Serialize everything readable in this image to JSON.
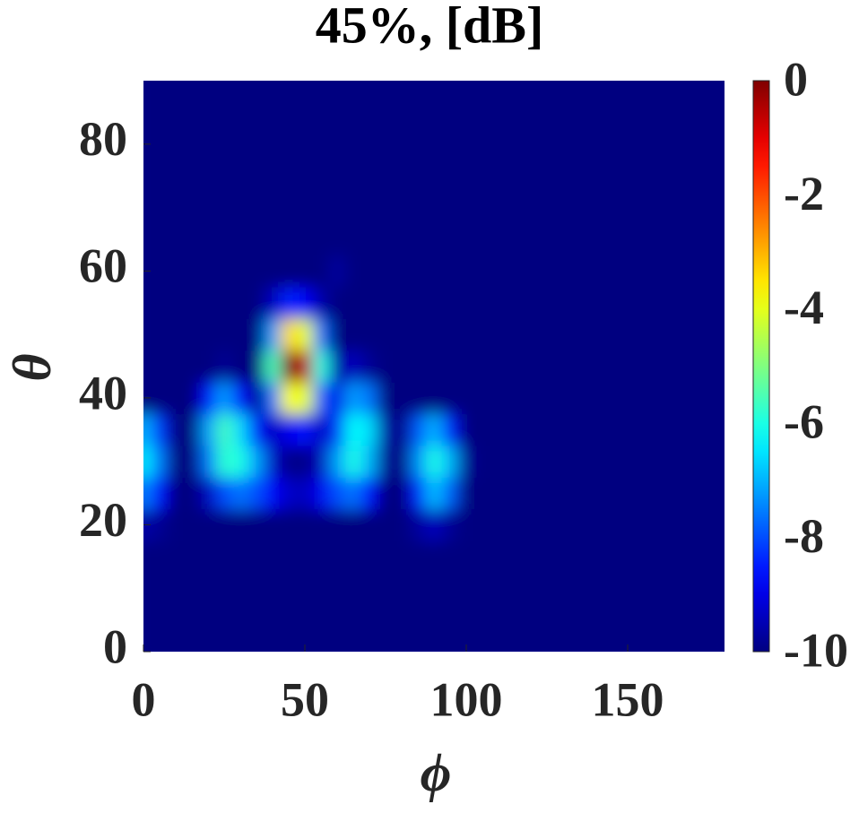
{
  "chart_data": {
    "type": "heatmap",
    "title": "45%, [dB]",
    "xlabel": "ϕ",
    "ylabel": "θ",
    "x": [
      0,
      5,
      10,
      15,
      20,
      25,
      30,
      35,
      40,
      45,
      50,
      55,
      60,
      65,
      70,
      75,
      80,
      85,
      90,
      95,
      100,
      105,
      110,
      115,
      120,
      125,
      130,
      135,
      140,
      145,
      150,
      155,
      160,
      165,
      170,
      175,
      180
    ],
    "y": [
      0,
      5,
      10,
      15,
      20,
      25,
      30,
      35,
      40,
      45,
      50,
      55,
      60,
      65,
      70,
      75,
      80,
      85,
      90
    ],
    "z": [
      [
        -10,
        -10,
        -10,
        -10,
        -10,
        -10,
        -10,
        -10,
        -10,
        -10,
        -10,
        -10,
        -10,
        -10,
        -10,
        -10,
        -10,
        -10,
        -10,
        -10,
        -10,
        -10,
        -10,
        -10,
        -10,
        -10,
        -10,
        -10,
        -10,
        -10,
        -10,
        -10,
        -10,
        -10,
        -10,
        -10,
        -10
      ],
      [
        -10,
        -10,
        -10,
        -10,
        -10,
        -10,
        -10,
        -10,
        -10,
        -10,
        -10,
        -10,
        -10,
        -10,
        -10,
        -10,
        -10,
        -10,
        -10,
        -10,
        -10,
        -10,
        -10,
        -10,
        -10,
        -10,
        -10,
        -10,
        -10,
        -10,
        -10,
        -10,
        -10,
        -10,
        -10,
        -10,
        -10
      ],
      [
        -10,
        -10,
        -10,
        -10,
        -10,
        -10,
        -10,
        -10,
        -10,
        -10,
        -10,
        -10,
        -10,
        -10,
        -10,
        -10,
        -10,
        -10,
        -10,
        -10,
        -10,
        -10,
        -10,
        -10,
        -10,
        -10,
        -10,
        -10,
        -10,
        -10,
        -10,
        -10,
        -10,
        -10,
        -10,
        -10,
        -10
      ],
      [
        -10,
        -10,
        -10,
        -10,
        -10,
        -10,
        -10,
        -10,
        -10,
        -10,
        -10,
        -10,
        -10,
        -10,
        -10,
        -10,
        -10,
        -10,
        -10,
        -10,
        -10,
        -10,
        -10,
        -10,
        -10,
        -10,
        -10,
        -10,
        -10,
        -10,
        -10,
        -10,
        -10,
        -10,
        -10,
        -10,
        -10
      ],
      [
        -9.6,
        -9.8,
        -10,
        -10,
        -10,
        -10,
        -10,
        -10,
        -10,
        -10,
        -10,
        -10,
        -10,
        -10,
        -10,
        -10,
        -10,
        -9.7,
        -9.4,
        -9.8,
        -10,
        -10,
        -10,
        -10,
        -10,
        -10,
        -10,
        -10,
        -10,
        -10,
        -10,
        -10,
        -10,
        -10,
        -10,
        -10,
        -10
      ],
      [
        -7.5,
        -8.6,
        -10,
        -10,
        -9.4,
        -8,
        -7.6,
        -8,
        -8.8,
        -9.3,
        -9.4,
        -8.9,
        -8,
        -7.6,
        -8.6,
        -10,
        -10,
        -8.4,
        -6.9,
        -7.8,
        -10,
        -10,
        -10,
        -10,
        -10,
        -10,
        -10,
        -10,
        -10,
        -10,
        -10,
        -10,
        -10,
        -10,
        -10,
        -10,
        -10
      ],
      [
        -6.4,
        -7.6,
        -10,
        -10,
        -7.6,
        -5.8,
        -6,
        -7.2,
        -9.3,
        -9.9,
        -9.9,
        -9.4,
        -7.2,
        -6,
        -7,
        -9.8,
        -10,
        -7.4,
        -6,
        -7,
        -9.8,
        -10,
        -10,
        -10,
        -10,
        -10,
        -10,
        -10,
        -10,
        -10,
        -10,
        -10,
        -10,
        -10,
        -10,
        -10,
        -10
      ],
      [
        -7,
        -8.2,
        -10,
        -10,
        -7.2,
        -5.6,
        -6.6,
        -8.6,
        -9.4,
        -8.9,
        -8.6,
        -9.4,
        -8.2,
        -6.2,
        -6.6,
        -9.6,
        -10,
        -7.9,
        -7,
        -8.4,
        -10,
        -10,
        -10,
        -10,
        -10,
        -10,
        -10,
        -10,
        -10,
        -10,
        -10,
        -10,
        -10,
        -10,
        -10,
        -10,
        -10
      ],
      [
        -10,
        -10,
        -10,
        -10,
        -8.6,
        -7.2,
        -8.6,
        -9.8,
        -7.6,
        -3.8,
        -4,
        -7.8,
        -9,
        -7.2,
        -7.6,
        -10,
        -10,
        -10,
        -10,
        -10,
        -10,
        -10,
        -10,
        -10,
        -10,
        -10,
        -10,
        -10,
        -10,
        -10,
        -10,
        -10,
        -10,
        -10,
        -10,
        -10,
        -10
      ],
      [
        -10,
        -10,
        -10,
        -10,
        -10,
        -9.8,
        -10,
        -10,
        -5.6,
        0,
        -0.6,
        -6,
        -9.6,
        -9.4,
        -9.8,
        -10,
        -10,
        -10,
        -10,
        -10,
        -10,
        -10,
        -10,
        -10,
        -10,
        -10,
        -10,
        -10,
        -10,
        -10,
        -10,
        -10,
        -10,
        -10,
        -10,
        -10,
        -10
      ],
      [
        -10,
        -10,
        -10,
        -10,
        -10,
        -10,
        -10,
        -10,
        -7.2,
        -3.4,
        -4,
        -7.6,
        -10,
        -10,
        -10,
        -10,
        -10,
        -10,
        -10,
        -10,
        -10,
        -10,
        -10,
        -10,
        -10,
        -10,
        -10,
        -10,
        -10,
        -10,
        -10,
        -10,
        -10,
        -10,
        -10,
        -10,
        -10
      ],
      [
        -10,
        -10,
        -10,
        -10,
        -10,
        -10,
        -10,
        -10,
        -9.4,
        -8.4,
        -8.8,
        -9.6,
        -10,
        -10,
        -10,
        -10,
        -10,
        -10,
        -10,
        -10,
        -10,
        -10,
        -10,
        -10,
        -10,
        -10,
        -10,
        -10,
        -10,
        -10,
        -10,
        -10,
        -10,
        -10,
        -10,
        -10,
        -10
      ],
      [
        -10,
        -10,
        -10,
        -10,
        -10,
        -10,
        -10,
        -10,
        -10,
        -10,
        -10,
        -10,
        -9.7,
        -10,
        -10,
        -10,
        -10,
        -10,
        -10,
        -10,
        -10,
        -10,
        -10,
        -10,
        -10,
        -10,
        -10,
        -10,
        -10,
        -10,
        -10,
        -10,
        -10,
        -10,
        -10,
        -10,
        -10
      ],
      [
        -10,
        -10,
        -10,
        -10,
        -10,
        -10,
        -10,
        -10,
        -10,
        -10,
        -10,
        -10,
        -10,
        -10,
        -10,
        -10,
        -10,
        -10,
        -10,
        -10,
        -10,
        -10,
        -10,
        -10,
        -10,
        -10,
        -10,
        -10,
        -10,
        -10,
        -10,
        -10,
        -10,
        -10,
        -10,
        -10,
        -10
      ],
      [
        -10,
        -10,
        -10,
        -10,
        -10,
        -10,
        -10,
        -10,
        -10,
        -10,
        -10,
        -10,
        -10,
        -10,
        -10,
        -10,
        -10,
        -10,
        -10,
        -10,
        -10,
        -10,
        -10,
        -10,
        -10,
        -10,
        -10,
        -10,
        -10,
        -10,
        -10,
        -10,
        -10,
        -10,
        -10,
        -10,
        -10
      ],
      [
        -10,
        -10,
        -10,
        -10,
        -10,
        -10,
        -10,
        -10,
        -10,
        -10,
        -10,
        -10,
        -10,
        -10,
        -10,
        -10,
        -10,
        -10,
        -10,
        -10,
        -10,
        -10,
        -10,
        -10,
        -10,
        -10,
        -10,
        -10,
        -10,
        -10,
        -10,
        -10,
        -10,
        -10,
        -10,
        -10,
        -10
      ],
      [
        -10,
        -10,
        -10,
        -10,
        -10,
        -10,
        -10,
        -10,
        -10,
        -10,
        -10,
        -10,
        -10,
        -10,
        -10,
        -10,
        -10,
        -10,
        -10,
        -10,
        -10,
        -10,
        -10,
        -10,
        -10,
        -10,
        -10,
        -10,
        -10,
        -10,
        -10,
        -10,
        -10,
        -10,
        -10,
        -10,
        -10
      ],
      [
        -10,
        -10,
        -10,
        -10,
        -10,
        -10,
        -10,
        -10,
        -10,
        -10,
        -10,
        -10,
        -10,
        -10,
        -10,
        -10,
        -10,
        -10,
        -10,
        -10,
        -10,
        -10,
        -10,
        -10,
        -10,
        -10,
        -10,
        -10,
        -10,
        -10,
        -10,
        -10,
        -10,
        -10,
        -10,
        -10,
        -10
      ],
      [
        -10,
        -10,
        -10,
        -10,
        -10,
        -10,
        -10,
        -10,
        -10,
        -10,
        -10,
        -10,
        -10,
        -10,
        -10,
        -10,
        -10,
        -10,
        -10,
        -10,
        -10,
        -10,
        -10,
        -10,
        -10,
        -10,
        -10,
        -10,
        -10,
        -10,
        -10,
        -10,
        -10,
        -10,
        -10,
        -10,
        -10
      ]
    ],
    "xlim": [
      0,
      180
    ],
    "ylim": [
      0,
      90
    ],
    "xticks": [
      0,
      50,
      100,
      150
    ],
    "yticks": [
      0,
      20,
      40,
      60,
      80
    ],
    "colormap": "jet",
    "clim": [
      -10,
      0
    ],
    "colorbar_ticks": [
      0,
      -2,
      -4,
      -6,
      -8,
      -10
    ]
  }
}
